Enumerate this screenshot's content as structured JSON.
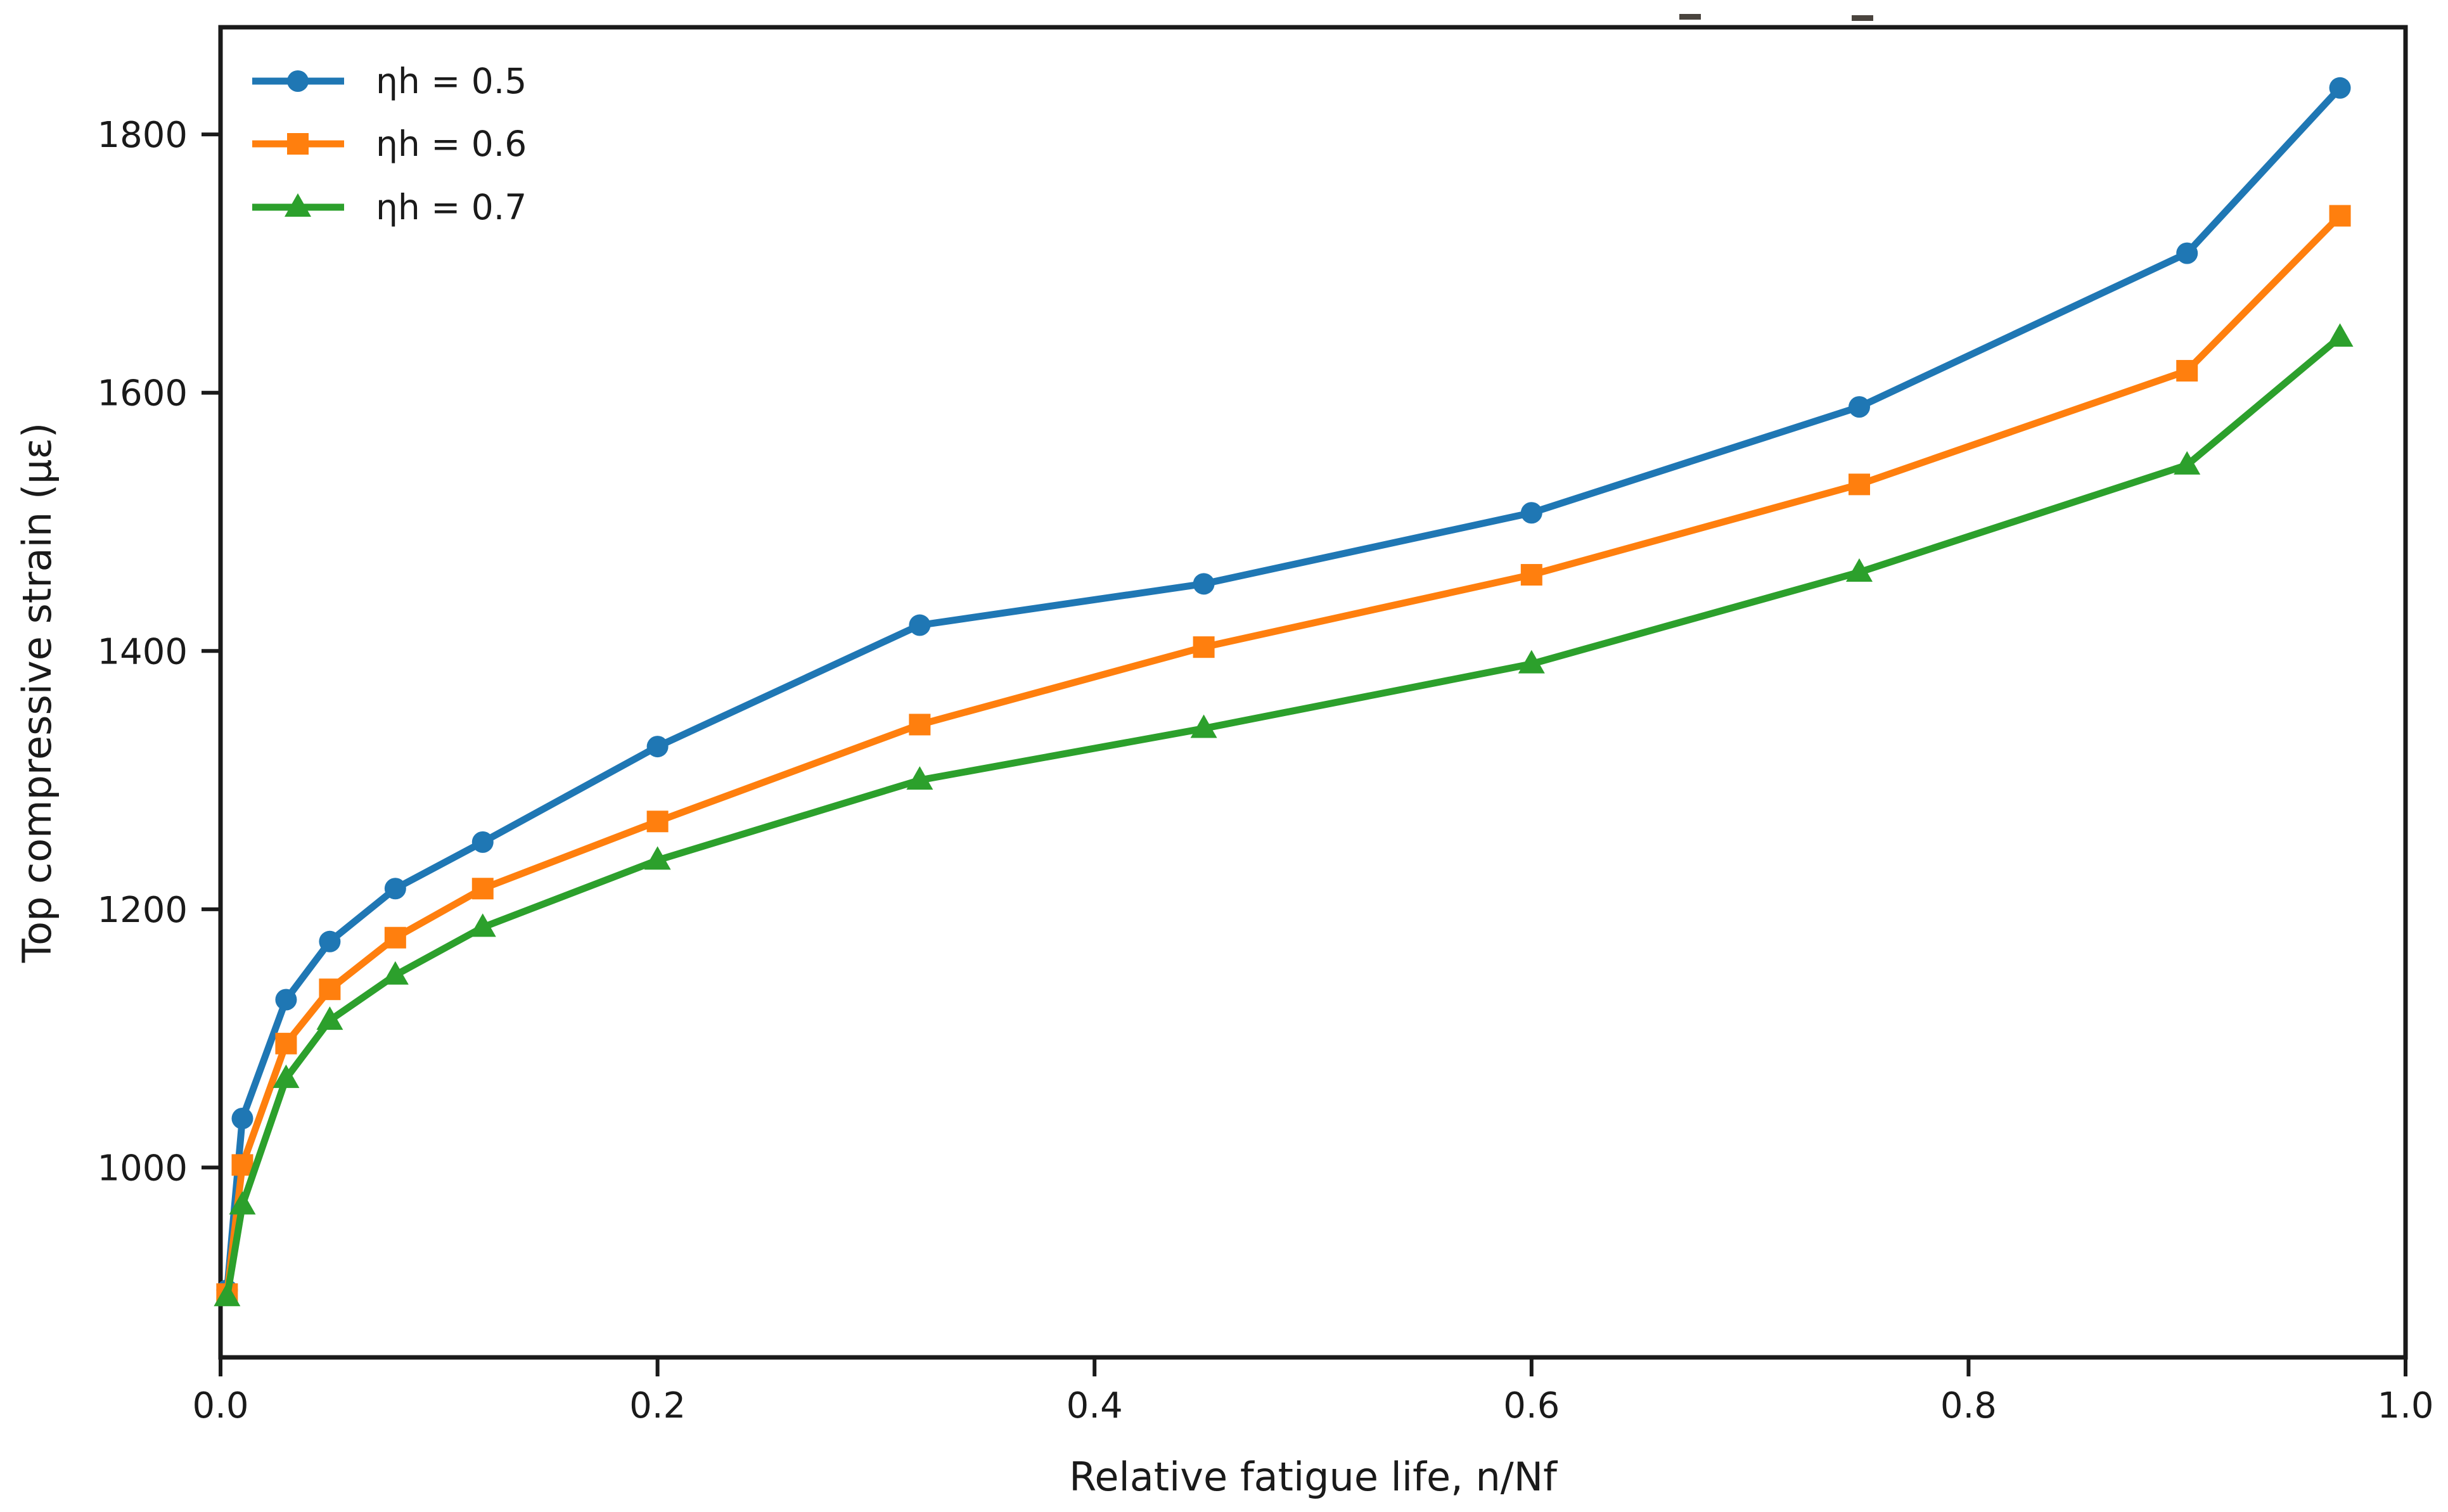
{
  "chart_data": {
    "type": "line",
    "title": "",
    "xlabel": "Relative fatigue life, n/Nf",
    "ylabel": "Top compressive strain (με)",
    "xlim": [
      0.0,
      1.0
    ],
    "ylim": [
      853,
      1883
    ],
    "grid": false,
    "legend_position": "upper-left",
    "x_ticks": {
      "values": [
        0.0,
        0.2,
        0.4,
        0.6,
        0.8,
        1.0
      ],
      "labels": [
        "0.0",
        "0.2",
        "0.4",
        "0.6",
        "0.8",
        "1.0"
      ]
    },
    "y_ticks": {
      "values": [
        1000,
        1200,
        1400,
        1600,
        1800
      ],
      "labels": [
        "1000",
        "1200",
        "1400",
        "1600",
        "1800"
      ]
    },
    "x": [
      0.003,
      0.01,
      0.03,
      0.05,
      0.08,
      0.12,
      0.2,
      0.32,
      0.45,
      0.6,
      0.75,
      0.9,
      0.97
    ],
    "series": [
      {
        "name": "ηh = 0.5",
        "color": "#1f77b4",
        "marker": "circle",
        "values": [
          905,
          1038,
          1130,
          1175,
          1216,
          1252,
          1326,
          1420,
          1452,
          1507,
          1589,
          1708,
          1836
        ]
      },
      {
        "name": "ηh = 0.6",
        "color": "#ff7f0e",
        "marker": "square",
        "values": [
          902,
          1002,
          1096,
          1138,
          1178,
          1216,
          1268,
          1343,
          1403,
          1459,
          1529,
          1617,
          1737
        ]
      },
      {
        "name": "ηh = 0.7",
        "color": "#2ca02c",
        "marker": "triangle",
        "values": [
          900,
          971,
          1069,
          1114,
          1149,
          1186,
          1238,
          1300,
          1340,
          1390,
          1461,
          1544,
          1643
        ]
      }
    ],
    "frame_color": "#1a1a1a",
    "top_edge_artifacts": [
      {
        "x": 2650,
        "y": 22
      },
      {
        "x": 2922,
        "y": 24
      }
    ]
  }
}
